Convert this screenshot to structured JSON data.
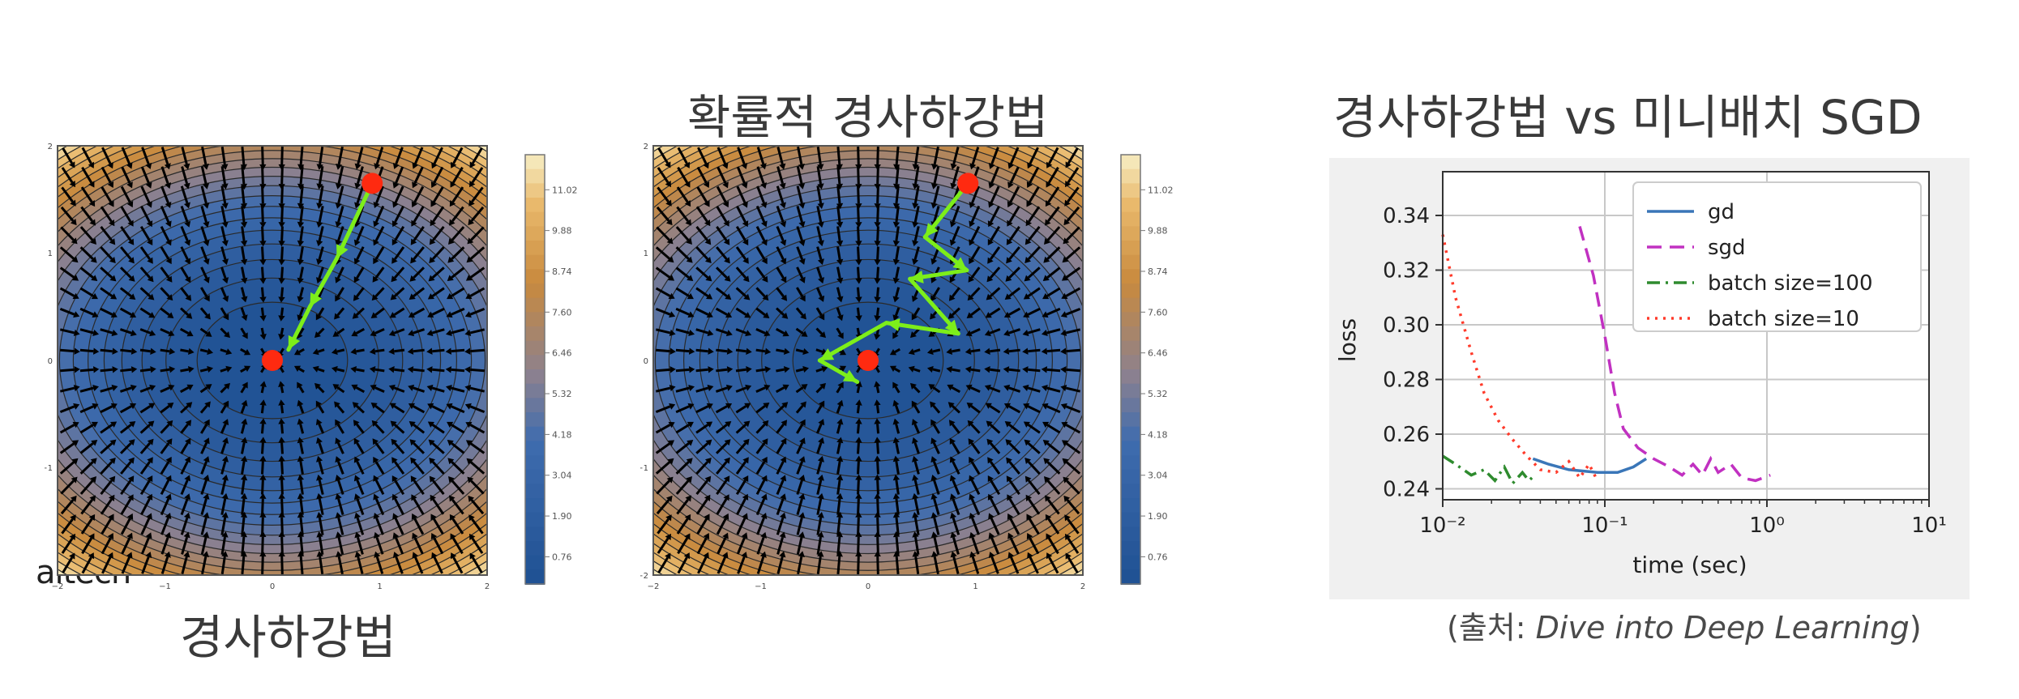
{
  "titles": {
    "left_caption": "경사하강법",
    "middle": "확률적 경사하강법",
    "right": "경사하강법 vs 미니배치 SGD"
  },
  "watermark": "aitech",
  "source": {
    "prefix": "(출처: ",
    "italic": "Dive into Deep Learning",
    "suffix": ")"
  },
  "contour": {
    "x_ticks": [
      "−2",
      "−1",
      "0",
      "1",
      "2"
    ],
    "y_ticks": [
      "2",
      "1",
      "0",
      "−1",
      "−2"
    ],
    "colorbar_ticks": [
      "11.02",
      "9.88",
      "8.74",
      "7.60",
      "6.46",
      "5.32",
      "4.18",
      "3.04",
      "1.90",
      "0.76"
    ],
    "colors": {
      "low": "#1d4f91",
      "mid": "#8a8090",
      "high": "#c98a3e",
      "top": "#f5e7b8",
      "path": "#7dee1a",
      "point": "#ff2a10"
    }
  },
  "chart_data": [
    {
      "type": "heatmap",
      "title": "",
      "xlim": [
        -2,
        2
      ],
      "ylim": [
        -2,
        2
      ],
      "colorbar": [
        0.76,
        1.9,
        3.04,
        4.18,
        5.32,
        6.46,
        7.6,
        8.74,
        9.88,
        11.02
      ],
      "start": [
        0.93,
        1.65
      ],
      "minimum": [
        0,
        0
      ],
      "path": [
        [
          0.93,
          1.65
        ],
        [
          0.6,
          0.95
        ],
        [
          0.35,
          0.5
        ],
        [
          0.15,
          0.1
        ]
      ]
    },
    {
      "type": "heatmap",
      "title": "확률적 경사하강법",
      "xlim": [
        -2,
        2
      ],
      "ylim": [
        -2,
        2
      ],
      "colorbar": [
        0.76,
        1.9,
        3.04,
        4.18,
        5.32,
        6.46,
        7.6,
        8.74,
        9.88,
        11.02
      ],
      "start": [
        0.93,
        1.65
      ],
      "minimum": [
        0,
        0
      ],
      "path": [
        [
          0.93,
          1.65
        ],
        [
          0.53,
          1.15
        ],
        [
          0.92,
          0.84
        ],
        [
          0.39,
          0.76
        ],
        [
          0.84,
          0.25
        ],
        [
          0.17,
          0.35
        ],
        [
          -0.45,
          0.0
        ],
        [
          -0.1,
          -0.2
        ]
      ]
    },
    {
      "type": "line",
      "title": "경사하강법 vs 미니배치 SGD",
      "xlabel": "time (sec)",
      "ylabel": "loss",
      "xscale": "log",
      "xlim": [
        0.01,
        10
      ],
      "ylim": [
        0.236,
        0.356
      ],
      "x_tick_labels": [
        "10⁻²",
        "10⁻¹",
        "10⁰",
        "10¹"
      ],
      "y_ticks": [
        0.24,
        0.26,
        0.28,
        0.3,
        0.32,
        0.34
      ],
      "grid": true,
      "legend": "top-right",
      "series": [
        {
          "name": "gd",
          "color": "#3a76b8",
          "dash": "",
          "points": [
            [
              0.036,
              0.251
            ],
            [
              0.045,
              0.249
            ],
            [
              0.06,
              0.247
            ],
            [
              0.09,
              0.246
            ],
            [
              0.12,
              0.246
            ],
            [
              0.15,
              0.248
            ],
            [
              0.18,
              0.251
            ]
          ]
        },
        {
          "name": "sgd",
          "color": "#c131c1",
          "dash": "18,10",
          "points": [
            [
              0.07,
              0.336
            ],
            [
              0.085,
              0.318
            ],
            [
              0.1,
              0.296
            ],
            [
              0.115,
              0.275
            ],
            [
              0.13,
              0.262
            ],
            [
              0.16,
              0.255
            ],
            [
              0.2,
              0.251
            ],
            [
              0.25,
              0.248
            ],
            [
              0.3,
              0.245
            ],
            [
              0.35,
              0.249
            ],
            [
              0.4,
              0.245
            ],
            [
              0.45,
              0.251
            ],
            [
              0.5,
              0.246
            ],
            [
              0.6,
              0.249
            ],
            [
              0.7,
              0.244
            ],
            [
              0.85,
              0.243
            ],
            [
              1.05,
              0.245
            ]
          ]
        },
        {
          "name": "batch size=100",
          "color": "#2e8b2e",
          "dash": "16,7,3,7",
          "points": [
            [
              0.01,
              0.252
            ],
            [
              0.012,
              0.249
            ],
            [
              0.015,
              0.245
            ],
            [
              0.018,
              0.247
            ],
            [
              0.021,
              0.243
            ],
            [
              0.024,
              0.248
            ],
            [
              0.027,
              0.242
            ],
            [
              0.031,
              0.246
            ],
            [
              0.034,
              0.243
            ],
            [
              0.037,
              0.245
            ]
          ]
        },
        {
          "name": "batch size=10",
          "color": "#ff3a2a",
          "dash": "3,7",
          "points": [
            [
              0.01,
              0.333
            ],
            [
              0.012,
              0.31
            ],
            [
              0.015,
              0.29
            ],
            [
              0.018,
              0.275
            ],
            [
              0.022,
              0.265
            ],
            [
              0.027,
              0.258
            ],
            [
              0.033,
              0.252
            ],
            [
              0.04,
              0.247
            ],
            [
              0.05,
              0.246
            ],
            [
              0.06,
              0.25
            ],
            [
              0.07,
              0.244
            ],
            [
              0.08,
              0.249
            ],
            [
              0.09,
              0.243
            ]
          ]
        }
      ]
    }
  ]
}
